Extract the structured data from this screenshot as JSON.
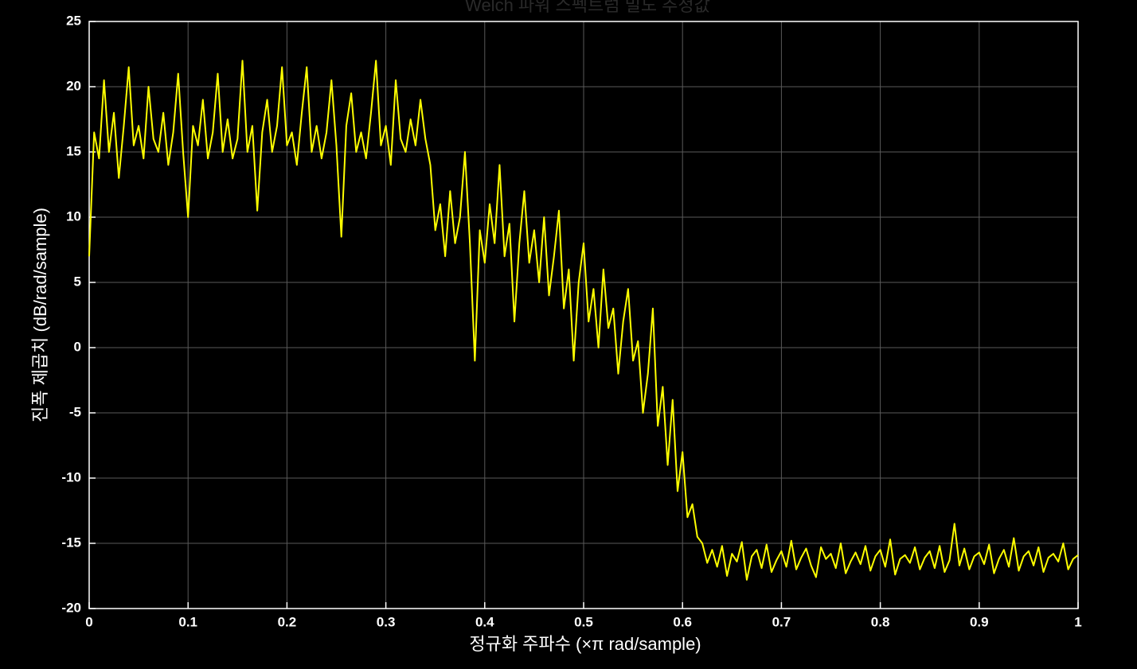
{
  "chart_data": {
    "type": "line",
    "title": "Welch 파워 스펙트럼 밀도 추정값",
    "xlabel": "정규화 주파수 (×π rad/sample)",
    "ylabel": "진폭 제곱치 (dB/rad/sample)",
    "color": "#ffff00",
    "grid": true,
    "xlim": [
      0,
      1
    ],
    "xticks": [
      0,
      0.1,
      0.2,
      0.3,
      0.4,
      0.5,
      0.6,
      0.7,
      0.8,
      0.9,
      1
    ],
    "ylim": [
      -20,
      25
    ],
    "yticks": [
      -20,
      -15,
      -10,
      -5,
      0,
      5,
      10,
      15,
      20,
      25
    ],
    "x": [
      0,
      0.005,
      0.01,
      0.015,
      0.02,
      0.025,
      0.03,
      0.035,
      0.04,
      0.045,
      0.05,
      0.055,
      0.06,
      0.065,
      0.07,
      0.075,
      0.08,
      0.085,
      0.09,
      0.095,
      0.1,
      0.105,
      0.11,
      0.115,
      0.12,
      0.125,
      0.13,
      0.135,
      0.14,
      0.145,
      0.15,
      0.155,
      0.16,
      0.165,
      0.17,
      0.175,
      0.18,
      0.185,
      0.19,
      0.195,
      0.2,
      0.205,
      0.21,
      0.215,
      0.22,
      0.225,
      0.23,
      0.235,
      0.24,
      0.245,
      0.25,
      0.255,
      0.26,
      0.265,
      0.27,
      0.275,
      0.28,
      0.285,
      0.29,
      0.295,
      0.3,
      0.305,
      0.31,
      0.315,
      0.32,
      0.325,
      0.33,
      0.335,
      0.34,
      0.345,
      0.35,
      0.355,
      0.36,
      0.365,
      0.37,
      0.375,
      0.38,
      0.385,
      0.39,
      0.395,
      0.4,
      0.405,
      0.41,
      0.415,
      0.42,
      0.425,
      0.43,
      0.435,
      0.44,
      0.445,
      0.45,
      0.455,
      0.46,
      0.465,
      0.47,
      0.475,
      0.48,
      0.485,
      0.49,
      0.495,
      0.5,
      0.505,
      0.51,
      0.515,
      0.52,
      0.525,
      0.53,
      0.535,
      0.54,
      0.545,
      0.55,
      0.555,
      0.56,
      0.565,
      0.57,
      0.575,
      0.58,
      0.585,
      0.59,
      0.595,
      0.6,
      0.605,
      0.61,
      0.615,
      0.62,
      0.625,
      0.63,
      0.635,
      0.64,
      0.645,
      0.65,
      0.655,
      0.66,
      0.665,
      0.67,
      0.675,
      0.68,
      0.685,
      0.69,
      0.695,
      0.7,
      0.705,
      0.71,
      0.715,
      0.72,
      0.725,
      0.73,
      0.735,
      0.74,
      0.745,
      0.75,
      0.755,
      0.76,
      0.765,
      0.77,
      0.775,
      0.78,
      0.785,
      0.79,
      0.795,
      0.8,
      0.805,
      0.81,
      0.815,
      0.82,
      0.825,
      0.83,
      0.835,
      0.84,
      0.845,
      0.85,
      0.855,
      0.86,
      0.865,
      0.87,
      0.875,
      0.88,
      0.885,
      0.89,
      0.895,
      0.9,
      0.905,
      0.91,
      0.915,
      0.92,
      0.925,
      0.93,
      0.935,
      0.94,
      0.945,
      0.95,
      0.955,
      0.96,
      0.965,
      0.97,
      0.975,
      0.98,
      0.985,
      0.99,
      0.995,
      1
    ],
    "values": [
      7,
      16.5,
      14.5,
      20.5,
      15,
      18,
      13,
      17,
      21.5,
      15.5,
      17,
      14.5,
      20,
      16,
      15,
      18,
      14,
      16.5,
      21,
      15,
      10,
      17,
      15.5,
      19,
      14.5,
      16.5,
      21,
      15,
      17.5,
      14.5,
      16,
      22,
      15,
      17,
      10.5,
      16.5,
      19,
      15,
      17,
      21.5,
      15.5,
      16.5,
      14,
      18,
      21.5,
      15,
      17,
      14.5,
      16.5,
      20.5,
      15.5,
      8.5,
      17,
      19.5,
      15,
      16.5,
      14.5,
      18,
      22,
      15.5,
      17,
      14,
      20.5,
      16,
      15,
      17.5,
      15.5,
      19,
      16,
      14,
      9,
      11,
      7,
      12,
      8,
      10,
      15,
      8,
      -1,
      9,
      6.5,
      11,
      8,
      14,
      7,
      9.5,
      2,
      8,
      12,
      6.5,
      9,
      5,
      10,
      4,
      7,
      10.5,
      3,
      6,
      -1,
      5,
      8,
      2,
      4.5,
      0,
      6,
      1.5,
      3,
      -2,
      2,
      4.5,
      -1,
      0.5,
      -5,
      -2,
      3,
      -6,
      -3,
      -9,
      -4,
      -11,
      -8,
      -13,
      -12,
      -14.5,
      -15,
      -16.5,
      -15.5,
      -16.8,
      -15.2,
      -17.5,
      -15.8,
      -16.4,
      -14.9,
      -17.8,
      -16,
      -15.5,
      -16.9,
      -15.1,
      -17.2,
      -16.3,
      -15.6,
      -16.8,
      -14.8,
      -17,
      -16.1,
      -15.4,
      -16.7,
      -17.6,
      -15.3,
      -16.2,
      -15.8,
      -16.9,
      -15,
      -17.3,
      -16.4,
      -15.7,
      -16.6,
      -15.2,
      -17.1,
      -16,
      -15.5,
      -16.8,
      -14.7,
      -17.4,
      -16.2,
      -15.9,
      -16.5,
      -15.3,
      -17,
      -16.1,
      -15.6,
      -16.9,
      -15.2,
      -17.2,
      -16.3,
      -13.5,
      -16.7,
      -15.4,
      -17,
      -16,
      -15.7,
      -16.6,
      -15.1,
      -17.3,
      -16.2,
      -15.5,
      -16.8,
      -14.6,
      -17.1,
      -16,
      -15.6,
      -16.7,
      -15.3,
      -17.2,
      -16.1,
      -15.8,
      -16.4,
      -15,
      -17,
      -16.2,
      -15.9
    ]
  }
}
